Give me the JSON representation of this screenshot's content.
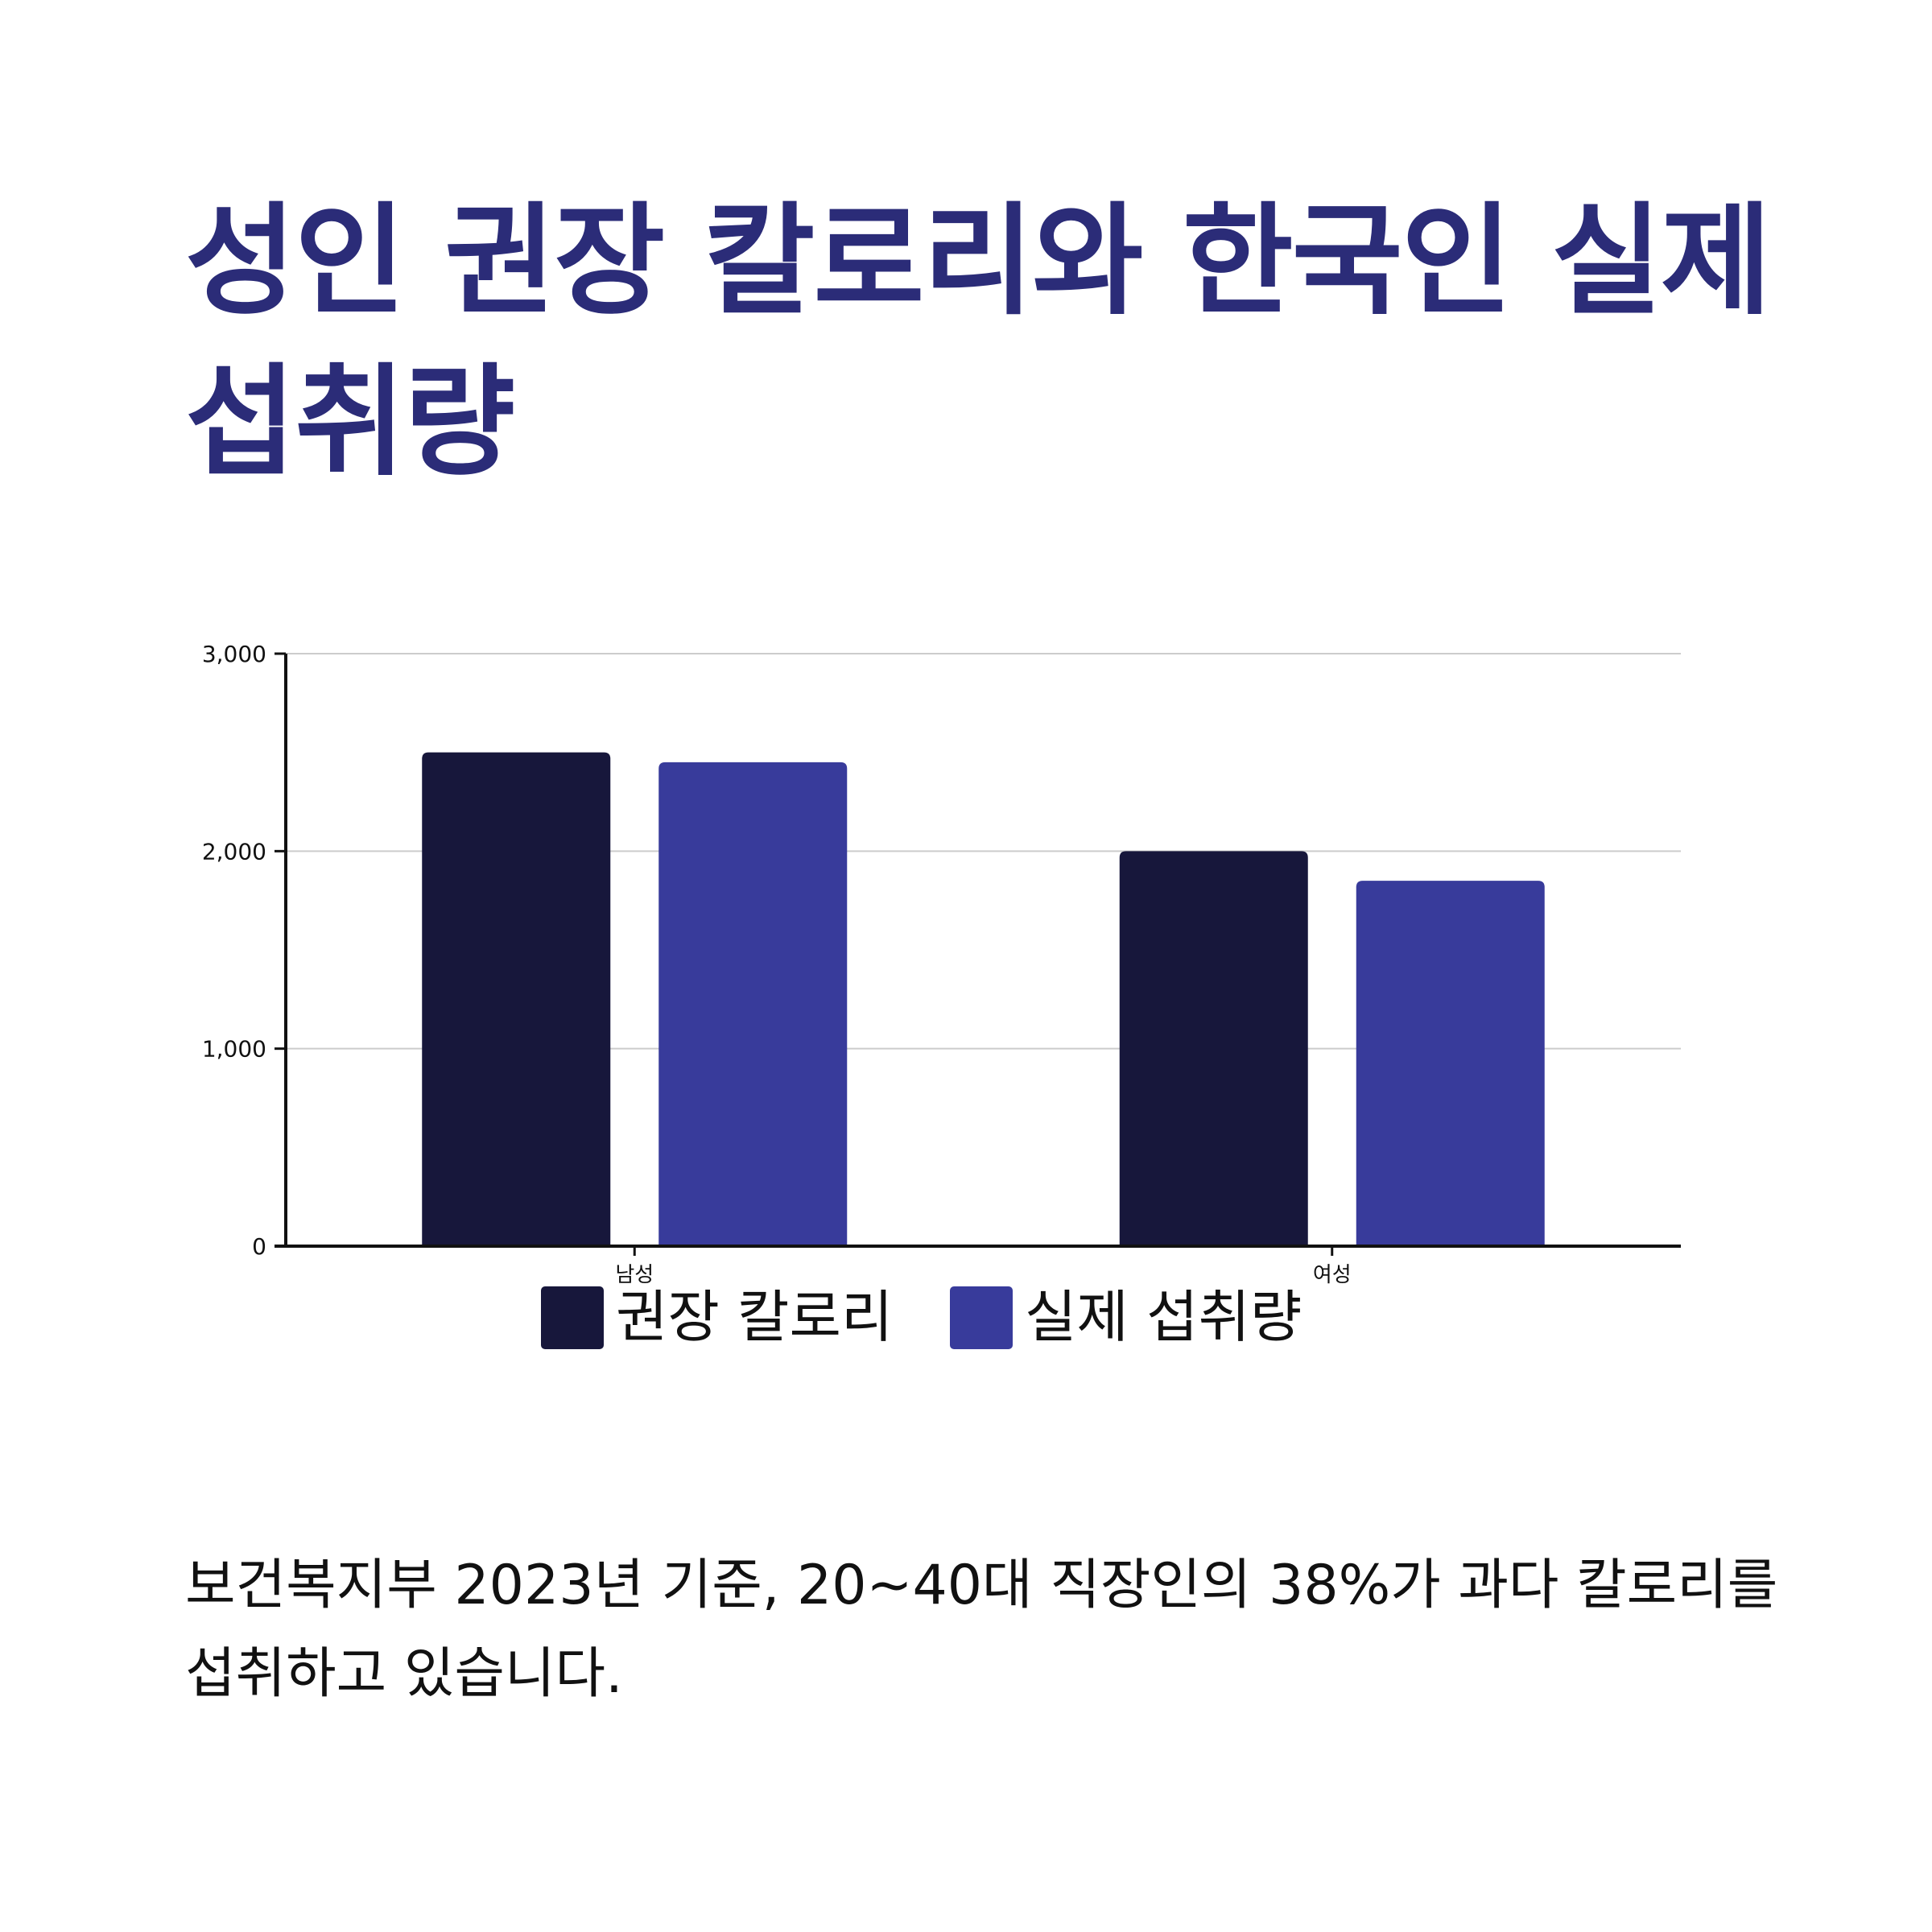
{
  "title": "성인 권장 칼로리와 한국인 실제 섭취량",
  "caption": "보건복지부 2023년 기준, 20~40대 직장인의 38%가 과다 칼로리를 섭취하고 있습니다.",
  "colors": {
    "title": "#2b2c78",
    "recommended": "#17173b",
    "actual": "#383b9b",
    "grid": "#cccccc",
    "axis": "#111111"
  },
  "chart_data": {
    "type": "bar",
    "categories": [
      "남성",
      "여성"
    ],
    "series": [
      {
        "name": "권장 칼로리",
        "values": [
          2500,
          2000
        ]
      },
      {
        "name": "실제 섭취량",
        "values": [
          2450,
          1850
        ]
      }
    ],
    "ylim": [
      0,
      3000
    ],
    "yticks": [
      0,
      1000,
      2000,
      3000
    ],
    "ytick_labels": [
      "0",
      "1,000",
      "2,000",
      "3,000"
    ],
    "grid": true,
    "legend_position": "bottom-center",
    "title": "",
    "xlabel": "",
    "ylabel": ""
  }
}
